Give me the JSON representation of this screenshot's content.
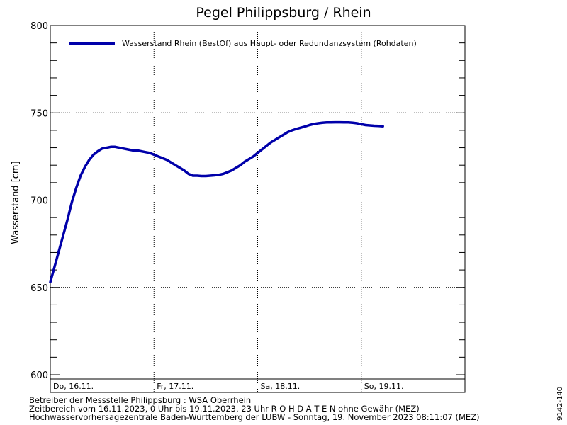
{
  "chart_data": {
    "type": "line",
    "title": "Pegel Philippsburg / Rhein",
    "ylabel": "Wasserstand [cm]",
    "xlabel": "",
    "ylim": [
      600,
      800
    ],
    "yticks": [
      600,
      650,
      700,
      750,
      800
    ],
    "xlim": [
      0,
      96
    ],
    "day_labels": [
      {
        "x": 0,
        "label": "Do, 16.11."
      },
      {
        "x": 24,
        "label": "Fr, 17.11."
      },
      {
        "x": 48,
        "label": "Sa, 18.11."
      },
      {
        "x": 72,
        "label": "So, 19.11."
      }
    ],
    "grid": true,
    "legend_position": "top-left",
    "line_color": "#0000aa",
    "series": [
      {
        "name": "Wasserstand Rhein (BestOf)  aus Haupt- oder Redundanzsystem (Rohdaten)",
        "x": [
          0,
          1,
          2,
          3,
          4,
          5,
          6,
          7,
          8,
          9,
          10,
          11,
          12,
          13,
          14,
          15,
          16,
          17,
          18,
          19,
          20,
          21,
          22,
          23,
          24,
          25,
          26,
          27,
          28,
          29,
          30,
          31,
          32,
          33,
          34,
          35,
          36,
          37,
          38,
          39,
          40,
          41,
          42,
          43,
          44,
          45,
          46,
          47,
          48,
          49,
          50,
          51,
          52,
          53,
          54,
          55,
          56,
          57,
          58,
          59,
          60,
          61,
          62,
          63,
          64,
          65,
          66,
          67,
          68,
          69,
          70,
          71,
          72,
          73,
          74,
          75,
          76,
          77
        ],
        "values": [
          653,
          662,
          671,
          680,
          689,
          699,
          707,
          714,
          719,
          723,
          726,
          728,
          729.5,
          730,
          730.5,
          730.5,
          730,
          729.5,
          729,
          728.5,
          728.5,
          728,
          727.5,
          727,
          726,
          725,
          724,
          723,
          721.5,
          720,
          718.5,
          717,
          715,
          714,
          714,
          713.8,
          713.8,
          714,
          714.2,
          714.5,
          715,
          716,
          717,
          718.5,
          720,
          722,
          723.5,
          725,
          727,
          729,
          731,
          733,
          734.5,
          736,
          737.5,
          739,
          740,
          740.8,
          741.5,
          742.2,
          743,
          743.6,
          744,
          744.3,
          744.5,
          744.5,
          744.6,
          744.6,
          744.5,
          744.5,
          744.3,
          744,
          743.5,
          743,
          742.8,
          742.6,
          742.5,
          742.3
        ]
      }
    ]
  },
  "footer": {
    "line1": "Betreiber der Messstelle Philippsburg : WSA Oberrhein",
    "line2": "Zeitbereich vom 16.11.2023, 0 Uhr bis 19.11.2023, 23 Uhr   R O H D A T E N ohne Gewähr (MEZ)",
    "line3": "Hochwasservorhersagezentrale Baden-Württemberg der LUBW - Sonntag, 19. November 2023 08:11:07 (MEZ)"
  },
  "side_code": "9142-140"
}
